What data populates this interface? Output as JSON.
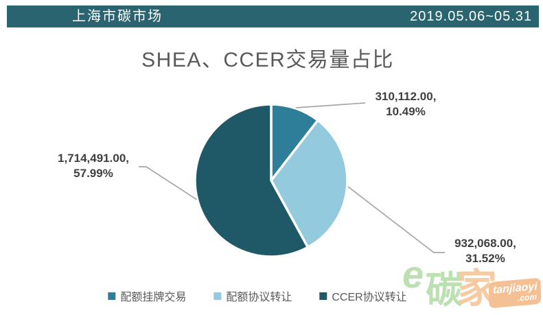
{
  "header": {
    "title": "上海市碳市场",
    "date_range": "2019.05.06~05.31",
    "bg_color": "#2A6470"
  },
  "chart_data": {
    "type": "pie",
    "title": "SHEA、CCER交易量占比",
    "start_angle_deg": 0,
    "direction": "clockwise",
    "legend_position": "bottom",
    "slices": [
      {
        "name": "配额挂牌交易",
        "value": 310112.0,
        "percent": 10.49,
        "color": "#2E7E99",
        "label_line1": "310,112.00,",
        "label_line2": "10.49%"
      },
      {
        "name": "配额协议转让",
        "value": 932068.0,
        "percent": 31.52,
        "color": "#93CADD",
        "label_line1": "932,068.00,",
        "label_line2": "31.52%"
      },
      {
        "name": "CCER协议转让",
        "value": 1714491.0,
        "percent": 57.99,
        "color": "#1F5968",
        "label_line1": "1,714,491.00,",
        "label_line2": "57.99%"
      }
    ],
    "label_text_color": "#3F3F3F",
    "leader_line_color": "#A6A6A6",
    "title_color": "#595959",
    "legend_text_color": "#595959"
  },
  "watermark": {
    "e_glyph": "e",
    "char1": "碳",
    "char2": "家",
    "site": "tanjiaoyi",
    "tld": ".com",
    "green": "#BCE0B2",
    "peach": "#F7CBA2",
    "badge_bg": "#F4C094"
  }
}
